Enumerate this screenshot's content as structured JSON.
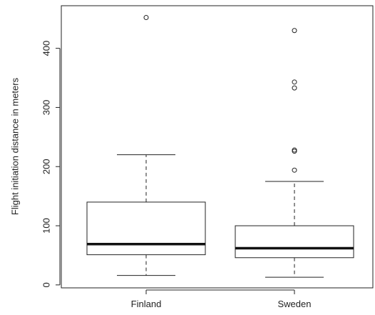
{
  "chart_data": {
    "type": "boxplot",
    "title": "",
    "xlabel": "",
    "ylabel": "Flight initiation distance in meters",
    "ylim": [
      -5,
      472
    ],
    "y_ticks": [
      0,
      100,
      200,
      300,
      400
    ],
    "y_tick_labels": [
      "0",
      "100",
      "200",
      "300",
      "400"
    ],
    "grid": false,
    "legend": "none",
    "categories": [
      "Finland",
      "Sweden"
    ],
    "boxes": [
      {
        "name": "Finland",
        "whisker_low": 16,
        "q1": 51,
        "median": 69,
        "q3": 140,
        "whisker_high": 220,
        "outliers": [
          452
        ]
      },
      {
        "name": "Sweden",
        "whisker_low": 13,
        "q1": 46,
        "median": 62,
        "q3": 100,
        "whisker_high": 175,
        "outliers": [
          194,
          226,
          228,
          333,
          343,
          430
        ]
      }
    ]
  }
}
